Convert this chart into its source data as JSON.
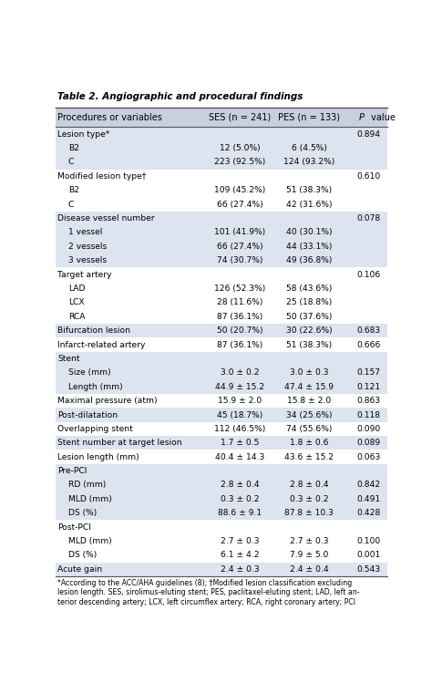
{
  "title": "Table 2. Angiographic and procedural findings",
  "headers": [
    "Procedures or variables",
    "SES (n = 241)",
    "PES (n = 133)",
    "P value"
  ],
  "rows": [
    {
      "label": "Lesion type*",
      "ses": "",
      "pes": "",
      "pval": "0.894",
      "indent": 0,
      "shaded": true
    },
    {
      "label": "B2",
      "ses": "12 (5.0%)",
      "pes": "6 (4.5%)",
      "pval": "",
      "indent": 1,
      "shaded": true
    },
    {
      "label": "C",
      "ses": "223 (92.5%)",
      "pes": "124 (93.2%)",
      "pval": "",
      "indent": 1,
      "shaded": true
    },
    {
      "label": "Modified lesion type†",
      "ses": "",
      "pes": "",
      "pval": "0.610",
      "indent": 0,
      "shaded": false
    },
    {
      "label": "B2",
      "ses": "109 (45.2%)",
      "pes": "51 (38.3%)",
      "pval": "",
      "indent": 1,
      "shaded": false
    },
    {
      "label": "C",
      "ses": "66 (27.4%)",
      "pes": "42 (31.6%)",
      "pval": "",
      "indent": 1,
      "shaded": false
    },
    {
      "label": "Disease vessel number",
      "ses": "",
      "pes": "",
      "pval": "0.078",
      "indent": 0,
      "shaded": true
    },
    {
      "label": "1 vessel",
      "ses": "101 (41.9%)",
      "pes": "40 (30.1%)",
      "pval": "",
      "indent": 1,
      "shaded": true
    },
    {
      "label": "2 vessels",
      "ses": "66 (27.4%)",
      "pes": "44 (33.1%)",
      "pval": "",
      "indent": 1,
      "shaded": true
    },
    {
      "label": "3 vessels",
      "ses": "74 (30.7%)",
      "pes": "49 (36.8%)",
      "pval": "",
      "indent": 1,
      "shaded": true
    },
    {
      "label": "Target artery",
      "ses": "",
      "pes": "",
      "pval": "0.106",
      "indent": 0,
      "shaded": false
    },
    {
      "label": "LAD",
      "ses": "126 (52.3%)",
      "pes": "58 (43.6%)",
      "pval": "",
      "indent": 1,
      "shaded": false
    },
    {
      "label": "LCX",
      "ses": "28 (11.6%)",
      "pes": "25 (18.8%)",
      "pval": "",
      "indent": 1,
      "shaded": false
    },
    {
      "label": "RCA",
      "ses": "87 (36.1%)",
      "pes": "50 (37.6%)",
      "pval": "",
      "indent": 1,
      "shaded": false
    },
    {
      "label": "Bifurcation lesion",
      "ses": "50 (20.7%)",
      "pes": "30 (22.6%)",
      "pval": "0.683",
      "indent": 0,
      "shaded": true
    },
    {
      "label": "Infarct-related artery",
      "ses": "87 (36.1%)",
      "pes": "51 (38.3%)",
      "pval": "0.666",
      "indent": 0,
      "shaded": false
    },
    {
      "label": "Stent",
      "ses": "",
      "pes": "",
      "pval": "",
      "indent": 0,
      "shaded": true
    },
    {
      "label": "Size (mm)",
      "ses": "3.0 ± 0.2",
      "pes": "3.0 ± 0.3",
      "pval": "0.157",
      "indent": 1,
      "shaded": true
    },
    {
      "label": "Length (mm)",
      "ses": "44.9 ± 15.2",
      "pes": "47.4 ± 15.9",
      "pval": "0.121",
      "indent": 1,
      "shaded": true
    },
    {
      "label": "Maximal pressure (atm)",
      "ses": "15.9 ± 2.0",
      "pes": "15.8 ± 2.0",
      "pval": "0.863",
      "indent": 0,
      "shaded": false
    },
    {
      "label": "Post-dilatation",
      "ses": "45 (18.7%)",
      "pes": "34 (25.6%)",
      "pval": "0.118",
      "indent": 0,
      "shaded": true
    },
    {
      "label": "Overlapping stent",
      "ses": "112 (46.5%)",
      "pes": "74 (55.6%)",
      "pval": "0.090",
      "indent": 0,
      "shaded": false
    },
    {
      "label": "Stent number at target lesion",
      "ses": "1.7 ± 0.5",
      "pes": "1.8 ± 0.6",
      "pval": "0.089",
      "indent": 0,
      "shaded": true
    },
    {
      "label": "Lesion length (mm)",
      "ses": "40.4 ± 14.3",
      "pes": "43.6 ± 15.2",
      "pval": "0.063",
      "indent": 0,
      "shaded": false
    },
    {
      "label": "Pre-PCI",
      "ses": "",
      "pes": "",
      "pval": "",
      "indent": 0,
      "shaded": true
    },
    {
      "label": "RD (mm)",
      "ses": "2.8 ± 0.4",
      "pes": "2.8 ± 0.4",
      "pval": "0.842",
      "indent": 1,
      "shaded": true
    },
    {
      "label": "MLD (mm)",
      "ses": "0.3 ± 0.2",
      "pes": "0.3 ± 0.2",
      "pval": "0.491",
      "indent": 1,
      "shaded": true
    },
    {
      "label": "DS (%)",
      "ses": "88.6 ± 9.1",
      "pes": "87.8 ± 10.3",
      "pval": "0.428",
      "indent": 1,
      "shaded": true
    },
    {
      "label": "Post-PCI",
      "ses": "",
      "pes": "",
      "pval": "",
      "indent": 0,
      "shaded": false
    },
    {
      "label": "MLD (mm)",
      "ses": "2.7 ± 0.3",
      "pes": "2.7 ± 0.3",
      "pval": "0.100",
      "indent": 1,
      "shaded": false
    },
    {
      "label": "DS (%)",
      "ses": "6.1 ± 4.2",
      "pes": "7.9 ± 5.0",
      "pval": "0.001",
      "indent": 1,
      "shaded": false
    },
    {
      "label": "Acute gain",
      "ses": "2.4 ± 0.3",
      "pes": "2.4 ± 0.4",
      "pval": "0.543",
      "indent": 0,
      "shaded": true
    }
  ],
  "footnote": "*According to the ACC/AHA guidelines (8); †Modified lesion classification excluding\nlesion length. SES, sirolimus-eluting stent; PES, paclitaxel-eluting stent; LAD, left an-\nterior descending artery; LCX, left circumflex artery; RCA, right coronary artery; PCI",
  "header_bg": "#c8d0e0",
  "shaded_bg": "#dde3ef",
  "white_bg": "#ffffff",
  "border_color": "#555555",
  "text_color": "#000000"
}
